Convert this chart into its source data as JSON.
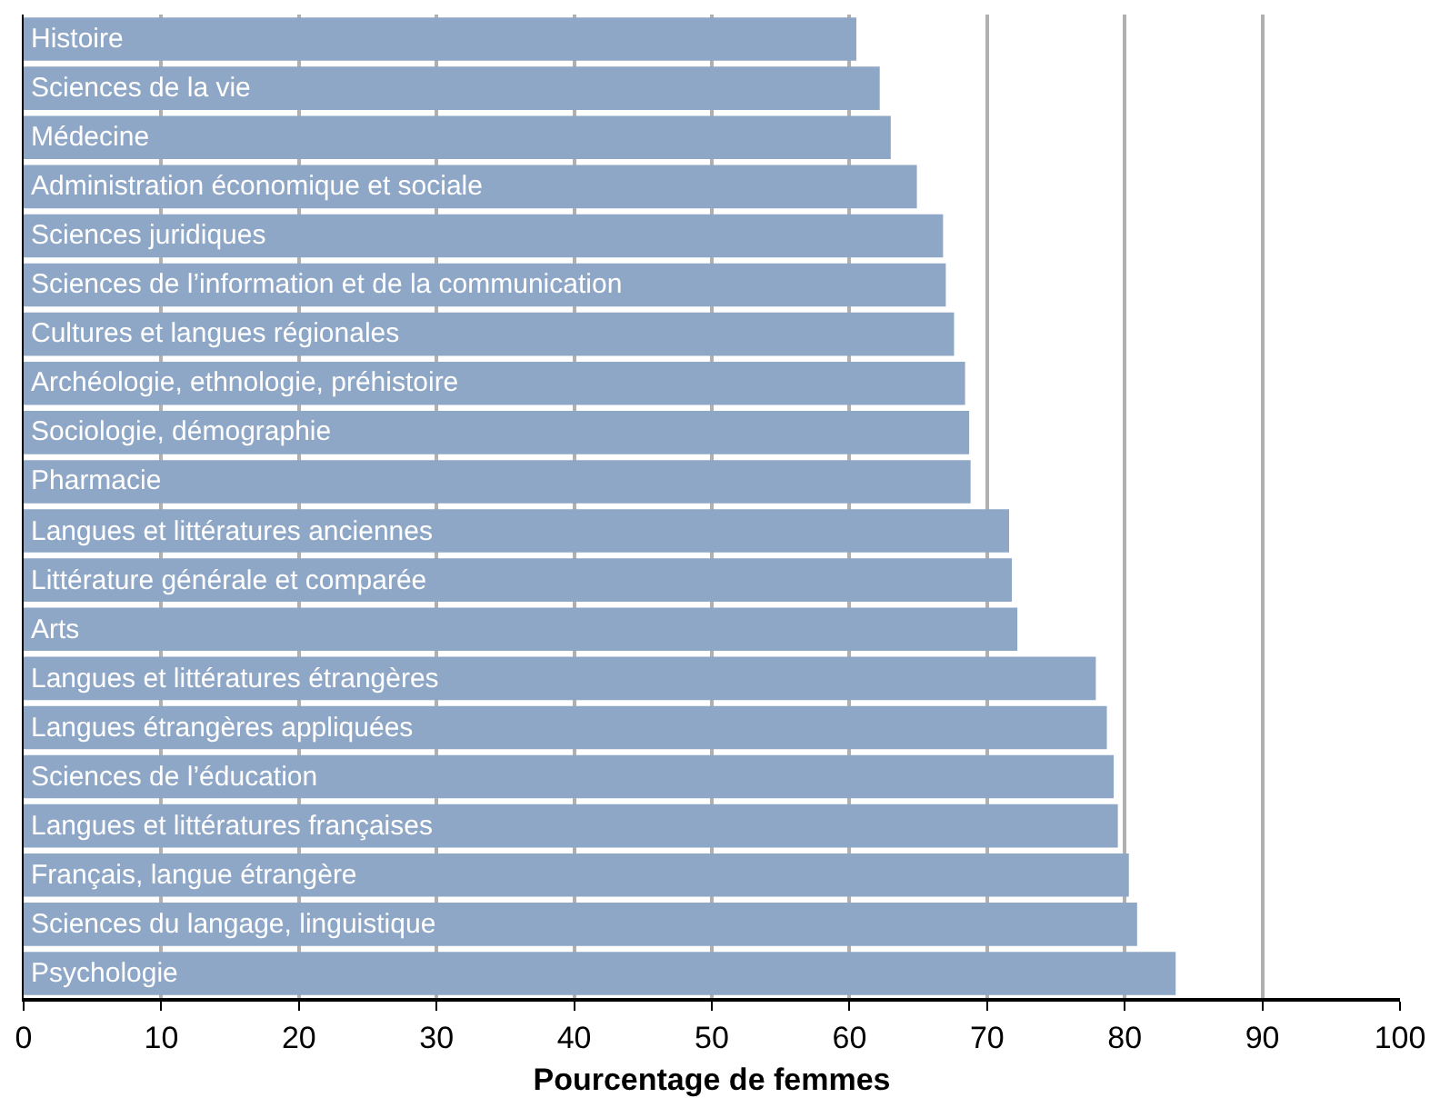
{
  "chart_data": {
    "type": "bar",
    "orientation": "horizontal",
    "xlabel": "Pourcentage de femmes",
    "categories": [
      "Histoire",
      "Sciences de la vie",
      "Médecine",
      "Administration économique et sociale",
      "Sciences juridiques",
      "Sciences de l’information et de la communication",
      "Cultures et langues régionales",
      "Archéologie, ethnologie, préhistoire",
      "Sociologie, démographie",
      "Pharmacie",
      "Langues et littératures anciennes",
      "Littérature générale et comparée",
      "Arts",
      "Langues et littératures étrangères",
      "Langues étrangères appliquées",
      "Sciences de l’éducation",
      "Langues et littératures françaises",
      "Français, langue étrangère",
      "Sciences du langage, linguistique",
      "Psychologie"
    ],
    "values": [
      60.5,
      62.2,
      63.0,
      64.9,
      66.8,
      67.0,
      67.6,
      68.4,
      68.7,
      68.8,
      71.6,
      71.8,
      72.2,
      77.9,
      78.7,
      79.2,
      79.5,
      80.3,
      80.9,
      83.7
    ],
    "color": "#8fa7c6",
    "xlim": [
      0,
      100
    ],
    "xticks": [
      0,
      10,
      20,
      30,
      40,
      50,
      60,
      70,
      80,
      90,
      100
    ],
    "grid": "x",
    "legend": false
  }
}
